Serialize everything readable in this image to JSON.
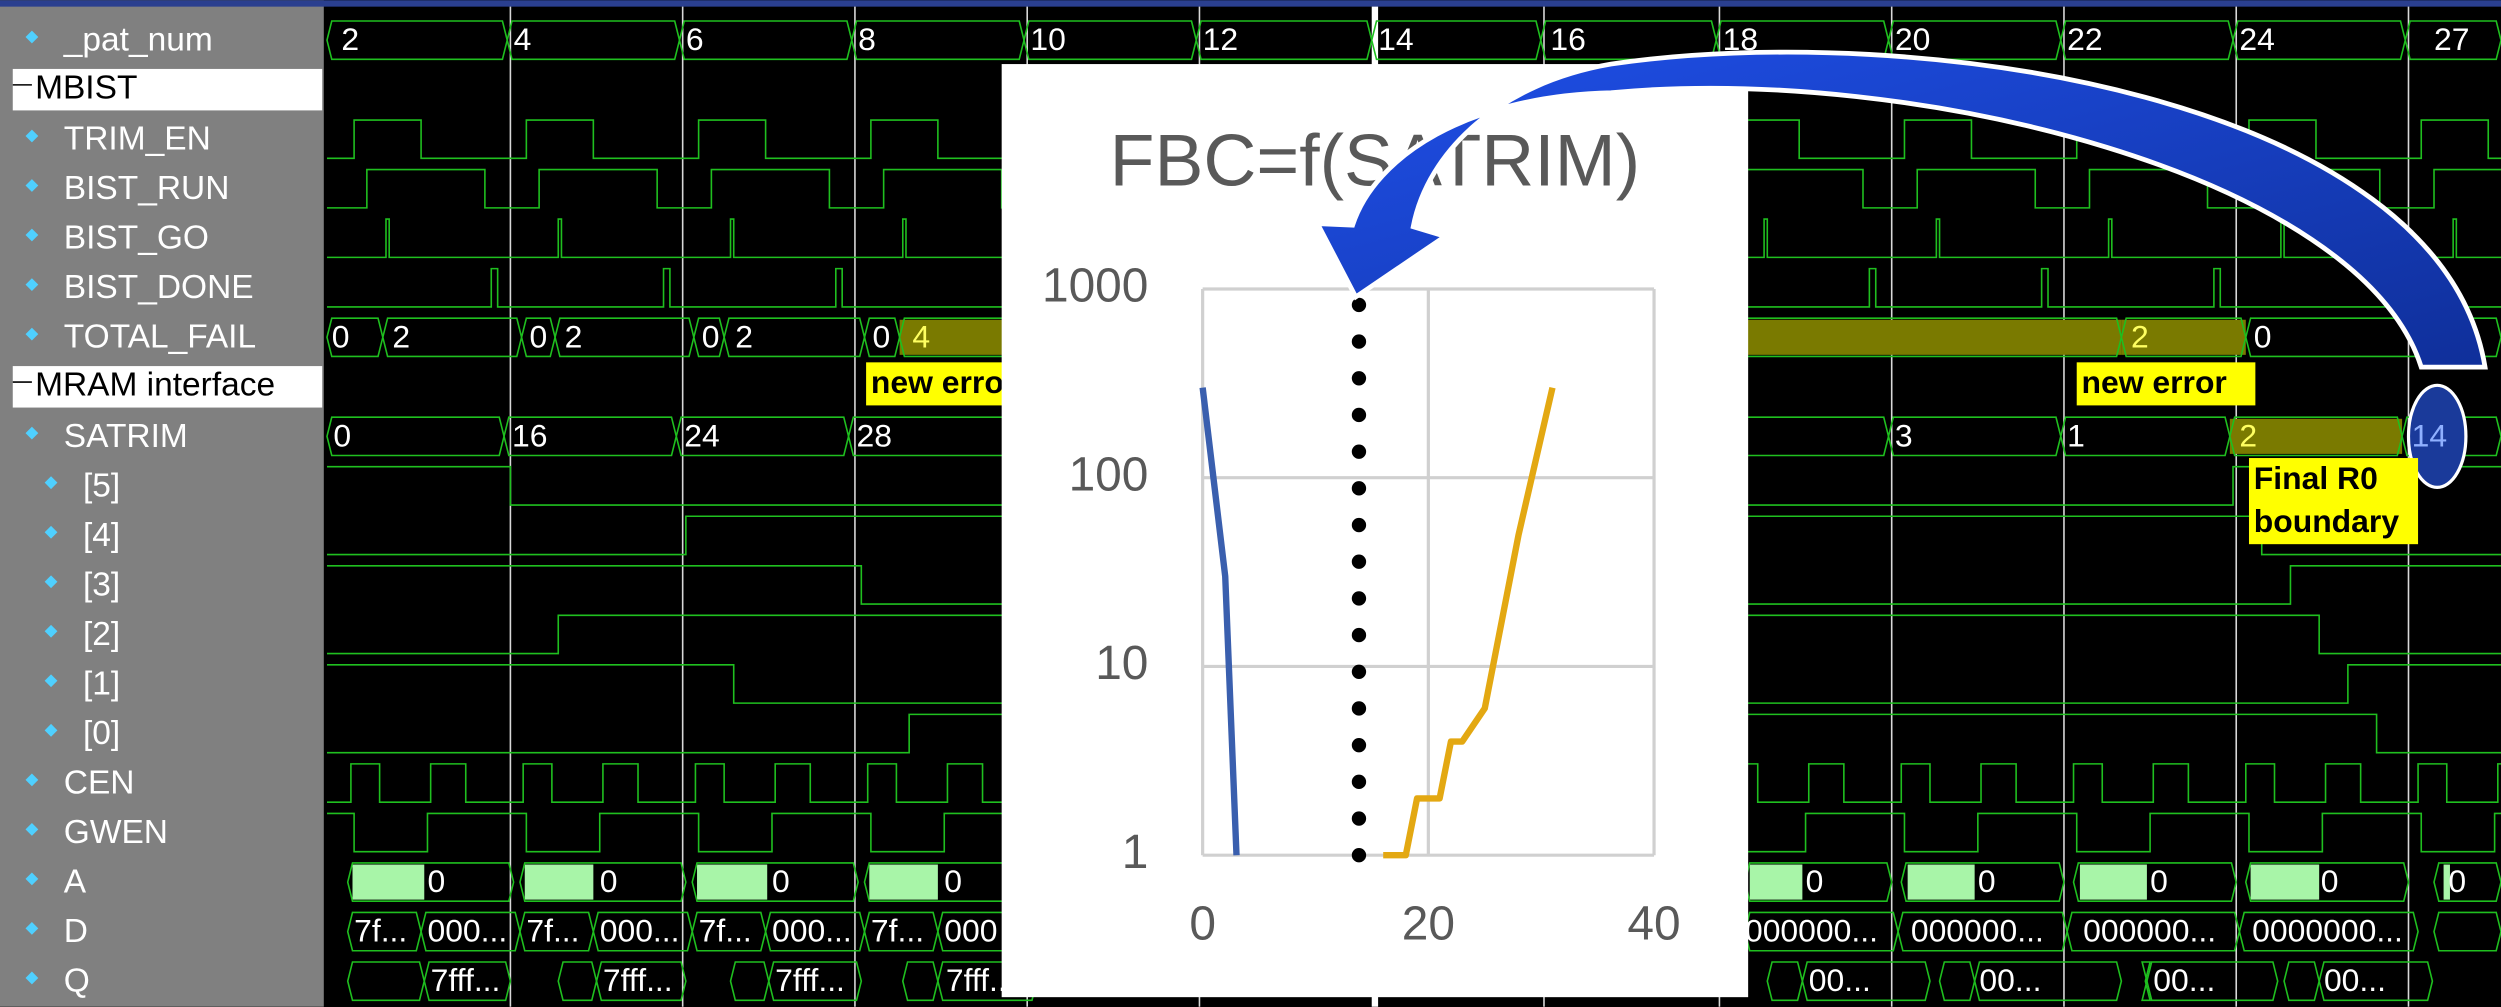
{
  "signals": [
    "_pat_num",
    "MBIST",
    "TRIM_EN",
    "BIST_RUN",
    "BIST_GO",
    "BIST_DONE",
    "TOTAL_FAIL",
    "MRAM interface",
    "SATRIM",
    "[5]",
    "[4]",
    "[3]",
    "[2]",
    "[1]",
    "[0]",
    "CEN",
    "GWEN",
    "A",
    "D",
    "Q"
  ],
  "pat_num": [
    "2",
    "4",
    "6",
    "8",
    "10",
    "12",
    "14",
    "16",
    "18",
    "20",
    "22",
    "24",
    "27"
  ],
  "total_fail": [
    "0",
    "2",
    "0",
    "2",
    "0",
    "2",
    "0",
    "4",
    "2",
    "0"
  ],
  "satrim": [
    "0",
    "16",
    "24",
    "28",
    "3",
    "1",
    "2",
    "14"
  ],
  "a": [
    "0",
    "0",
    "0",
    "0",
    "0",
    "0",
    "0",
    "0",
    "0"
  ],
  "d": [
    "7f...",
    "000...",
    "7f...",
    "000...",
    "7f...",
    "000...",
    "7f...",
    "000",
    "000000...",
    "000000...",
    "000000...",
    "0000000..."
  ],
  "q": [
    "7fff...",
    "7fff...",
    "7fff...",
    "7fff...",
    "00...",
    "00...",
    "00...",
    "00..."
  ],
  "annotations": {
    "new_error": [
      "new error",
      "new error"
    ],
    "final": [
      "Final R0",
      "boundary"
    ]
  },
  "chart_data": {
    "type": "line",
    "title": "FBC=f(SATRIM)",
    "xlim": [
      0,
      40
    ],
    "xticks": [
      0,
      20,
      40
    ],
    "ylim": [
      1,
      1000
    ],
    "yticks": [
      1,
      10,
      100,
      1000
    ],
    "log_y": true,
    "grid": true,
    "series": [
      {
        "color": "#3a5fae",
        "x": [
          0,
          2,
          3
        ],
        "values": [
          300,
          30,
          1
        ]
      },
      {
        "color": "#e3a812",
        "x": [
          16,
          18,
          19,
          21,
          22,
          23,
          25,
          28,
          31
        ],
        "values": [
          1,
          1,
          2,
          2,
          4,
          4,
          6,
          50,
          300
        ]
      }
    ]
  }
}
